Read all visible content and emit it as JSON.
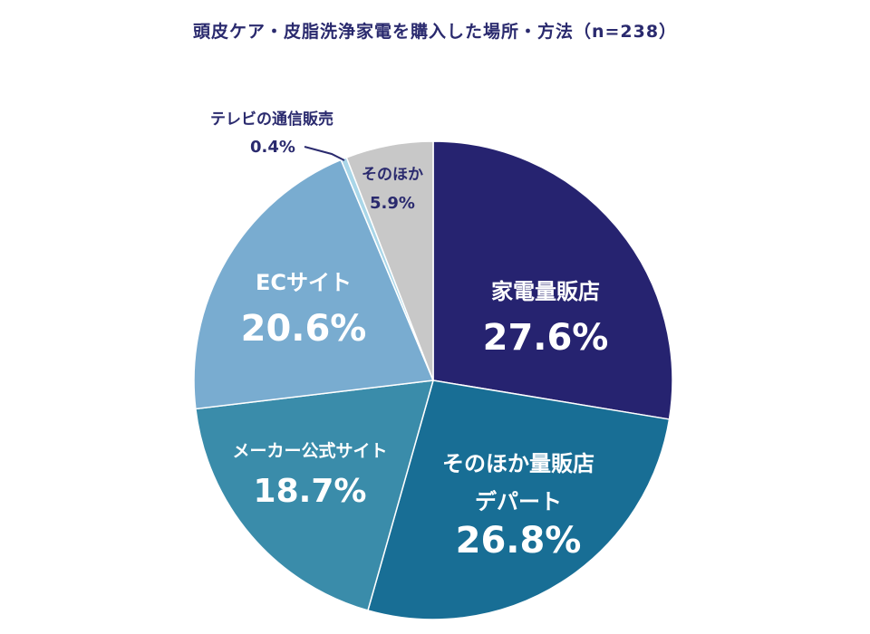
{
  "chart_data": {
    "type": "pie",
    "title": "頭皮ケア・皮脂洗浄家電を購入した場所・方法（n=238）",
    "slices": [
      {
        "label": "家電量販店",
        "label_line2": "",
        "value": 27.6,
        "value_text": "27.6%",
        "color": "#262370",
        "text_color": "#ffffff"
      },
      {
        "label": "そのほか量販店",
        "label_line2": "デパート",
        "value": 26.8,
        "value_text": "26.8%",
        "color": "#186e95",
        "text_color": "#ffffff"
      },
      {
        "label": "メーカー公式サイト",
        "label_line2": "",
        "value": 18.7,
        "value_text": "18.7%",
        "color": "#3a8caa",
        "text_color": "#ffffff"
      },
      {
        "label": "ECサイト",
        "label_line2": "",
        "value": 20.6,
        "value_text": "20.6%",
        "color": "#79acd0",
        "text_color": "#ffffff"
      },
      {
        "label": "テレビの通信販売",
        "label_line2": "",
        "value": 0.4,
        "value_text": "0.4%",
        "color": "#a9d6e8",
        "text_color": "#2a2a6e"
      },
      {
        "label": "そのほか",
        "label_line2": "",
        "value": 5.9,
        "value_text": "5.9%",
        "color": "#c8c8c8",
        "text_color": "#2a2a6e"
      }
    ]
  }
}
